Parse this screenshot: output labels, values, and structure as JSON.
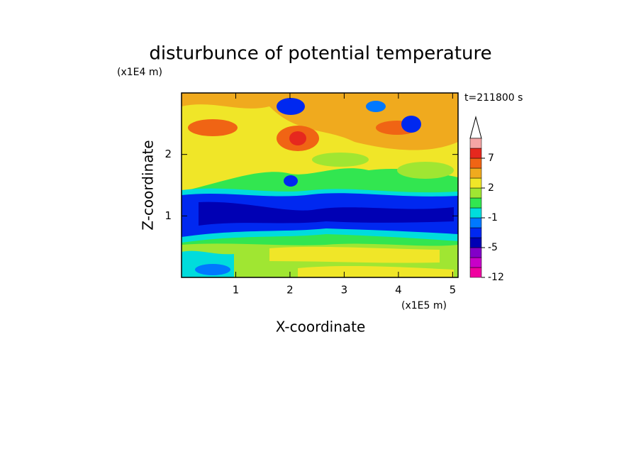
{
  "chart_data": {
    "type": "contour",
    "title": "disturbunce of potential temperature",
    "y_unit": "(x1E4 m)",
    "x_unit": "(x1E5 m)",
    "time_label": "t=211800 s",
    "x_label": "X-coordinate",
    "y_label": "Z-coordinate",
    "xlim": [
      0,
      5.1
    ],
    "ylim": [
      0,
      3
    ],
    "xticks": [
      1,
      2,
      3,
      4,
      5
    ],
    "yticks": [
      1,
      2
    ],
    "levels": [
      -12,
      -10,
      -7,
      -5,
      -3,
      -2,
      -1,
      0,
      1,
      2,
      3,
      5,
      7,
      9,
      11
    ],
    "level_colors": [
      "#f000a0",
      "#c800c8",
      "#8200c8",
      "#0000b4",
      "#0028f0",
      "#0078ff",
      "#00dcdc",
      "#32e650",
      "#a0e632",
      "#f0e628",
      "#f0aa1e",
      "#f06414",
      "#e6281e",
      "#f5a5a5"
    ],
    "colorbar_ticks": [
      -12,
      -5,
      -1,
      2,
      7
    ]
  }
}
